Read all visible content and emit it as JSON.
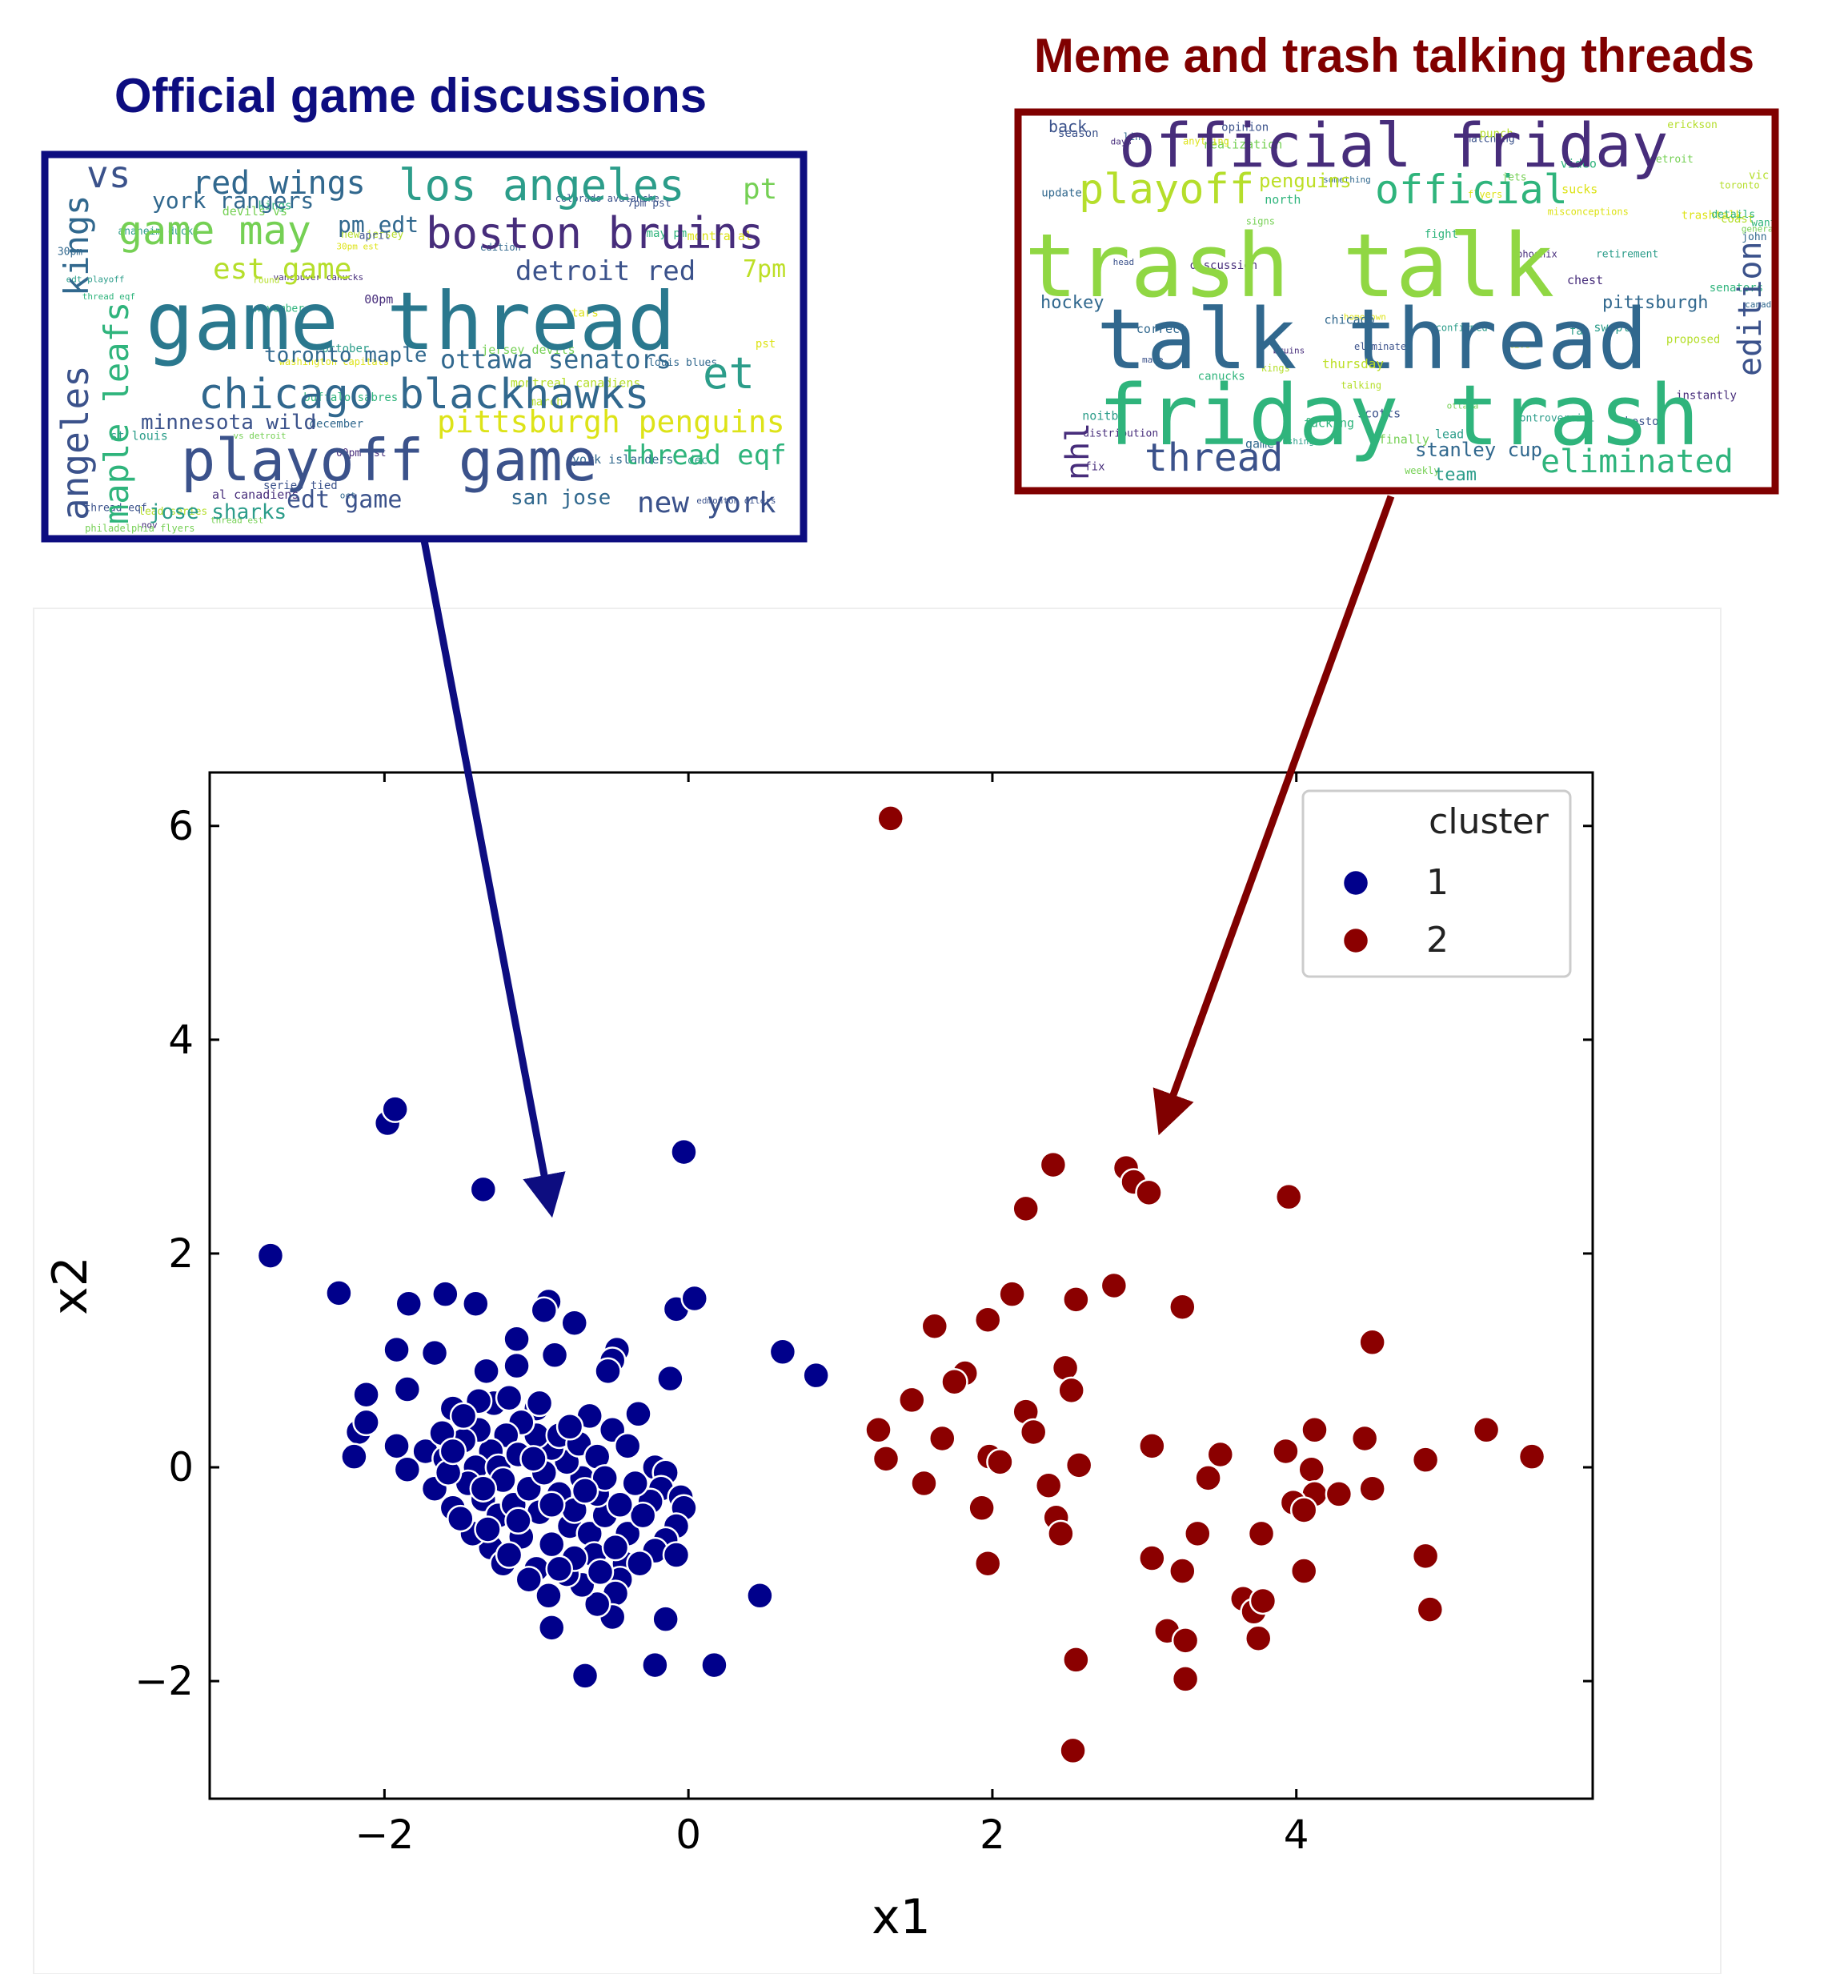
{
  "panels": {
    "left": {
      "title": "Official game discussions",
      "color": "#0d0d80",
      "words": [
        {
          "text": "vs",
          "size": 46,
          "color": "#3b528b"
        },
        {
          "text": "red wings",
          "size": 40,
          "color": "#31688e"
        },
        {
          "text": "los angeles",
          "size": 54,
          "color": "#2c9d8a"
        },
        {
          "text": "pt",
          "size": 36,
          "color": "#75d054"
        },
        {
          "text": "york rangers",
          "size": 28,
          "color": "#31688e"
        },
        {
          "text": "game may",
          "size": 50,
          "color": "#75d054"
        },
        {
          "text": "pm edt",
          "size": 28,
          "color": "#31688e"
        },
        {
          "text": "boston bruins",
          "size": 54,
          "color": "#472d7b"
        },
        {
          "text": "kings",
          "size": 42,
          "color": "#31688e"
        },
        {
          "text": "est game",
          "size": 36,
          "color": "#b5de2b"
        },
        {
          "text": "detroit red",
          "size": 34,
          "color": "#3b528b"
        },
        {
          "text": "7pm",
          "size": 30,
          "color": "#bddf26"
        },
        {
          "text": "game thread",
          "size": 100,
          "color": "#2a788e"
        },
        {
          "text": "toronto maple",
          "size": 26,
          "color": "#31688e"
        },
        {
          "text": "ottawa senators",
          "size": 32,
          "color": "#31688e"
        },
        {
          "text": "et",
          "size": 54,
          "color": "#2c9d8a"
        },
        {
          "text": "chicago blackhawks",
          "size": 52,
          "color": "#31688e"
        },
        {
          "text": "angeles",
          "size": 46,
          "color": "#3b528b"
        },
        {
          "text": "maple leafs",
          "size": 42,
          "color": "#2fb47c"
        },
        {
          "text": "minnesota wild",
          "size": 26,
          "color": "#3b528b"
        },
        {
          "text": "pittsburgh penguins",
          "size": 38,
          "color": "#dde318"
        },
        {
          "text": "playoff game",
          "size": 72,
          "color": "#3b528b"
        },
        {
          "text": "thread eqf",
          "size": 34,
          "color": "#2fb47c"
        },
        {
          "text": "edt game",
          "size": 30,
          "color": "#3b528b"
        },
        {
          "text": "san jose",
          "size": 26,
          "color": "#31688e"
        },
        {
          "text": "new york",
          "size": 36,
          "color": "#3b528b"
        },
        {
          "text": "jose sharks",
          "size": 26,
          "color": "#2c9d8a"
        }
      ],
      "small_words": [
        "edmonton oilers",
        "oct",
        "october",
        "devils vs",
        "new jersey",
        "kings",
        "vancouver canucks",
        "montra al",
        "april",
        "december",
        "anaheim ducks",
        "philadelphia flyers",
        "montreal canadiens",
        "november",
        "00pm est",
        "30pm est",
        "colorado avalanche",
        "york islanders",
        "dec",
        "jersey devils",
        "round",
        "buffalo sabres",
        "al canadiens",
        "washington capitals",
        "thread eqf",
        "louis blues",
        "st louis",
        "thread est",
        "march",
        "may pm",
        "nov",
        "pst",
        "7pm pst",
        "30pm",
        "edt playoff",
        "vs detroit",
        "lead series",
        "thread eqf",
        "00pm",
        "stars",
        "series tied",
        "edition"
      ]
    },
    "right": {
      "title": "Meme and trash talking threads",
      "color": "#800000",
      "words": [
        {
          "text": "back",
          "size": 20,
          "color": "#3b528b"
        },
        {
          "text": "official friday",
          "size": 76,
          "color": "#472d7b"
        },
        {
          "text": "playoff",
          "size": 52,
          "color": "#b5de2b"
        },
        {
          "text": "penguins",
          "size": 24,
          "color": "#bddf26"
        },
        {
          "text": "official",
          "size": 50,
          "color": "#2fb47c"
        },
        {
          "text": "trash talk",
          "size": 110,
          "color": "#90d743"
        },
        {
          "text": "hockey",
          "size": 22,
          "color": "#31688e"
        },
        {
          "text": "talk thread",
          "size": 104,
          "color": "#31688e"
        },
        {
          "text": "edition",
          "size": 40,
          "color": "#3b528b"
        },
        {
          "text": "nhl",
          "size": 40,
          "color": "#472d7b"
        },
        {
          "text": "friday trash",
          "size": 104,
          "color": "#2fb47c"
        },
        {
          "text": "thread",
          "size": 48,
          "color": "#3b528b"
        },
        {
          "text": "stanley cup",
          "size": 24,
          "color": "#31688e"
        },
        {
          "text": "eliminated",
          "size": 40,
          "color": "#2fb47c"
        },
        {
          "text": "pittsburgh",
          "size": 22,
          "color": "#31688e"
        },
        {
          "text": "team",
          "size": 22,
          "color": "#2c9d8a"
        },
        {
          "text": "thursday",
          "size": 16,
          "color": "#bddf26"
        }
      ],
      "small_words": [
        "eliminated",
        "something",
        "swept",
        "general",
        "talking",
        "fight",
        "chest",
        "hometown",
        "season",
        "john",
        "controversial",
        "weekly",
        "toronto",
        "fucking",
        "discussion",
        "trashtalk",
        "boston",
        "chicago",
        "noitby",
        "realization",
        "kings",
        "video",
        "instantly",
        "anything",
        "head",
        "update",
        "crushing",
        "finally",
        "proposed",
        "senators",
        "distribution",
        "misconceptions",
        "opinion",
        "correct",
        "retirement",
        "ottawa",
        "coast",
        "north",
        "days",
        "sucks",
        "matching",
        "line",
        "fan",
        "detroit",
        "erickson",
        "canucks",
        "bruins",
        "flyers",
        "scotts",
        "game",
        "lead",
        "jets",
        "vic",
        "want",
        "fix",
        "live",
        "make",
        "canadian",
        "confirmed",
        "signs",
        "punch",
        "details",
        "phoenix"
      ]
    }
  },
  "chart_data": {
    "type": "scatter",
    "xlabel": "x1",
    "ylabel": "x2",
    "xlim": [
      -3.15,
      5.95
    ],
    "ylim": [
      -3.1,
      6.5
    ],
    "xticks": [
      -2,
      0,
      2,
      4
    ],
    "yticks": [
      -2,
      0,
      2,
      4,
      6
    ],
    "xtick_labels": [
      "−2",
      "0",
      "2",
      "4"
    ],
    "ytick_labels": [
      "−2",
      "0",
      "2",
      "4",
      "6"
    ],
    "legend": {
      "title": "cluster",
      "position": "top-right"
    },
    "series": [
      {
        "name": "1",
        "color": "#00008b",
        "points": [
          [
            -2.75,
            1.98
          ],
          [
            -2.3,
            1.63
          ],
          [
            -1.98,
            3.22
          ],
          [
            -1.93,
            3.35
          ],
          [
            -1.35,
            2.6
          ],
          [
            -0.03,
            2.95
          ],
          [
            -1.84,
            1.53
          ],
          [
            -1.6,
            1.62
          ],
          [
            -1.4,
            1.53
          ],
          [
            -0.92,
            1.55
          ],
          [
            -0.95,
            1.47
          ],
          [
            -0.75,
            1.35
          ],
          [
            -1.13,
            1.2
          ],
          [
            -0.08,
            1.48
          ],
          [
            0.04,
            1.58
          ],
          [
            -1.92,
            1.1
          ],
          [
            -1.67,
            1.07
          ],
          [
            -1.33,
            0.9
          ],
          [
            -1.13,
            0.95
          ],
          [
            -0.88,
            1.05
          ],
          [
            -0.47,
            1.1
          ],
          [
            -0.5,
            1.0
          ],
          [
            -0.53,
            0.9
          ],
          [
            -0.12,
            0.83
          ],
          [
            0.62,
            1.08
          ],
          [
            0.84,
            0.86
          ],
          [
            -2.12,
            0.68
          ],
          [
            -1.85,
            0.73
          ],
          [
            -1.55,
            0.55
          ],
          [
            -1.0,
            0.55
          ],
          [
            -0.65,
            0.48
          ],
          [
            -0.33,
            0.5
          ],
          [
            -2.17,
            0.33
          ],
          [
            -2.12,
            0.42
          ],
          [
            -1.92,
            0.2
          ],
          [
            -1.85,
            -0.02
          ],
          [
            -1.73,
            0.15
          ],
          [
            -1.67,
            -0.2
          ],
          [
            -1.6,
            0.08
          ],
          [
            -1.55,
            -0.38
          ],
          [
            -2.2,
            0.1
          ],
          [
            -0.5,
            0.35
          ],
          [
            -0.22,
            0.0
          ],
          [
            -0.15,
            -0.05
          ],
          [
            -0.18,
            -0.2
          ],
          [
            -0.25,
            -0.32
          ],
          [
            -0.05,
            -0.28
          ],
          [
            -0.03,
            -0.38
          ],
          [
            -0.08,
            -0.55
          ],
          [
            -0.15,
            -0.68
          ],
          [
            -0.22,
            -0.78
          ],
          [
            -0.08,
            -0.82
          ],
          [
            -0.4,
            -0.62
          ],
          [
            -0.42,
            -0.9
          ],
          [
            -0.45,
            -1.05
          ],
          [
            -0.48,
            -1.18
          ],
          [
            -0.5,
            -1.4
          ],
          [
            -0.6,
            -1.28
          ],
          [
            -0.7,
            -1.1
          ],
          [
            -0.8,
            -1.0
          ],
          [
            -0.92,
            -1.2
          ],
          [
            -0.9,
            -1.5
          ],
          [
            -0.68,
            -1.95
          ],
          [
            -0.22,
            -1.85
          ],
          [
            -0.15,
            -1.42
          ],
          [
            0.17,
            -1.85
          ],
          [
            0.47,
            -1.2
          ],
          [
            -1.3,
            -0.75
          ],
          [
            -1.22,
            -0.9
          ],
          [
            -1.1,
            -0.65
          ],
          [
            -1.0,
            -0.95
          ],
          [
            -0.9,
            -0.72
          ],
          [
            -0.78,
            -0.55
          ],
          [
            -0.65,
            -0.62
          ],
          [
            -0.55,
            -0.45
          ],
          [
            -0.6,
            -0.25
          ],
          [
            -0.7,
            -0.1
          ],
          [
            -0.8,
            0.05
          ],
          [
            -0.9,
            0.18
          ],
          [
            -1.0,
            0.3
          ],
          [
            -1.1,
            0.42
          ],
          [
            -1.2,
            0.3
          ],
          [
            -1.3,
            0.15
          ],
          [
            -1.4,
            0.0
          ],
          [
            -1.45,
            -0.15
          ],
          [
            -1.35,
            -0.3
          ],
          [
            -1.25,
            -0.45
          ],
          [
            -1.15,
            -0.35
          ],
          [
            -1.05,
            -0.2
          ],
          [
            -0.95,
            -0.05
          ],
          [
            -0.85,
            -0.25
          ],
          [
            -0.75,
            -0.4
          ],
          [
            -1.25,
            0.0
          ],
          [
            -1.12,
            0.12
          ],
          [
            -0.98,
            -0.42
          ],
          [
            -1.38,
            0.35
          ],
          [
            -1.48,
            0.25
          ],
          [
            -1.58,
            -0.05
          ],
          [
            -1.62,
            0.32
          ],
          [
            -1.28,
            0.6
          ],
          [
            -1.18,
            0.65
          ],
          [
            -1.38,
            0.62
          ],
          [
            -0.85,
            0.3
          ],
          [
            -0.72,
            0.22
          ],
          [
            -0.6,
            0.1
          ],
          [
            -0.55,
            -0.1
          ],
          [
            -0.4,
            0.2
          ],
          [
            -0.35,
            -0.15
          ],
          [
            -0.3,
            -0.45
          ],
          [
            -0.45,
            -0.35
          ],
          [
            -0.62,
            -0.82
          ],
          [
            -0.75,
            -0.85
          ],
          [
            -0.85,
            -0.95
          ],
          [
            -1.05,
            -1.05
          ],
          [
            -1.18,
            -0.82
          ],
          [
            -1.42,
            -0.62
          ],
          [
            -1.5,
            -0.48
          ],
          [
            -1.32,
            -0.58
          ],
          [
            -1.02,
            0.08
          ],
          [
            -0.9,
            -0.35
          ],
          [
            -0.78,
            0.38
          ],
          [
            -0.68,
            -0.22
          ],
          [
            -1.22,
            -0.12
          ],
          [
            -1.48,
            0.48
          ],
          [
            -1.55,
            0.15
          ],
          [
            -0.48,
            -0.75
          ],
          [
            -0.32,
            -0.9
          ],
          [
            -0.58,
            -0.98
          ],
          [
            -1.12,
            -0.5
          ],
          [
            -0.98,
            0.6
          ],
          [
            -1.35,
            -0.2
          ]
        ]
      },
      {
        "name": "2",
        "color": "#8b0000",
        "points": [
          [
            1.33,
            6.07
          ],
          [
            2.4,
            2.83
          ],
          [
            2.88,
            2.8
          ],
          [
            2.93,
            2.67
          ],
          [
            3.03,
            2.57
          ],
          [
            2.22,
            2.42
          ],
          [
            3.95,
            2.53
          ],
          [
            2.13,
            1.62
          ],
          [
            2.55,
            1.57
          ],
          [
            2.8,
            1.7
          ],
          [
            3.25,
            1.5
          ],
          [
            1.62,
            1.32
          ],
          [
            1.97,
            1.38
          ],
          [
            4.5,
            1.17
          ],
          [
            1.82,
            0.88
          ],
          [
            1.75,
            0.8
          ],
          [
            2.48,
            0.93
          ],
          [
            2.52,
            0.72
          ],
          [
            1.47,
            0.63
          ],
          [
            2.22,
            0.52
          ],
          [
            2.27,
            0.33
          ],
          [
            1.25,
            0.35
          ],
          [
            1.67,
            0.27
          ],
          [
            1.3,
            0.08
          ],
          [
            1.98,
            0.1
          ],
          [
            2.05,
            0.05
          ],
          [
            2.57,
            0.02
          ],
          [
            3.05,
            0.2
          ],
          [
            3.5,
            0.12
          ],
          [
            3.93,
            0.15
          ],
          [
            4.12,
            0.35
          ],
          [
            4.45,
            0.27
          ],
          [
            4.85,
            0.07
          ],
          [
            5.25,
            0.35
          ],
          [
            5.55,
            0.1
          ],
          [
            1.55,
            -0.15
          ],
          [
            1.93,
            -0.38
          ],
          [
            2.37,
            -0.17
          ],
          [
            2.42,
            -0.47
          ],
          [
            2.45,
            -0.62
          ],
          [
            3.42,
            -0.1
          ],
          [
            4.1,
            -0.02
          ],
          [
            4.12,
            -0.25
          ],
          [
            4.28,
            -0.25
          ],
          [
            4.5,
            -0.2
          ],
          [
            3.98,
            -0.33
          ],
          [
            4.05,
            -0.4
          ],
          [
            3.35,
            -0.62
          ],
          [
            3.77,
            -0.62
          ],
          [
            3.05,
            -0.85
          ],
          [
            3.25,
            -0.97
          ],
          [
            1.97,
            -0.9
          ],
          [
            4.05,
            -0.97
          ],
          [
            4.85,
            -0.83
          ],
          [
            3.65,
            -1.23
          ],
          [
            3.72,
            -1.35
          ],
          [
            3.78,
            -1.25
          ],
          [
            4.88,
            -1.33
          ],
          [
            3.15,
            -1.53
          ],
          [
            3.27,
            -1.62
          ],
          [
            3.75,
            -1.6
          ],
          [
            2.55,
            -1.8
          ],
          [
            3.27,
            -1.98
          ],
          [
            2.53,
            -2.65
          ]
        ]
      }
    ]
  }
}
